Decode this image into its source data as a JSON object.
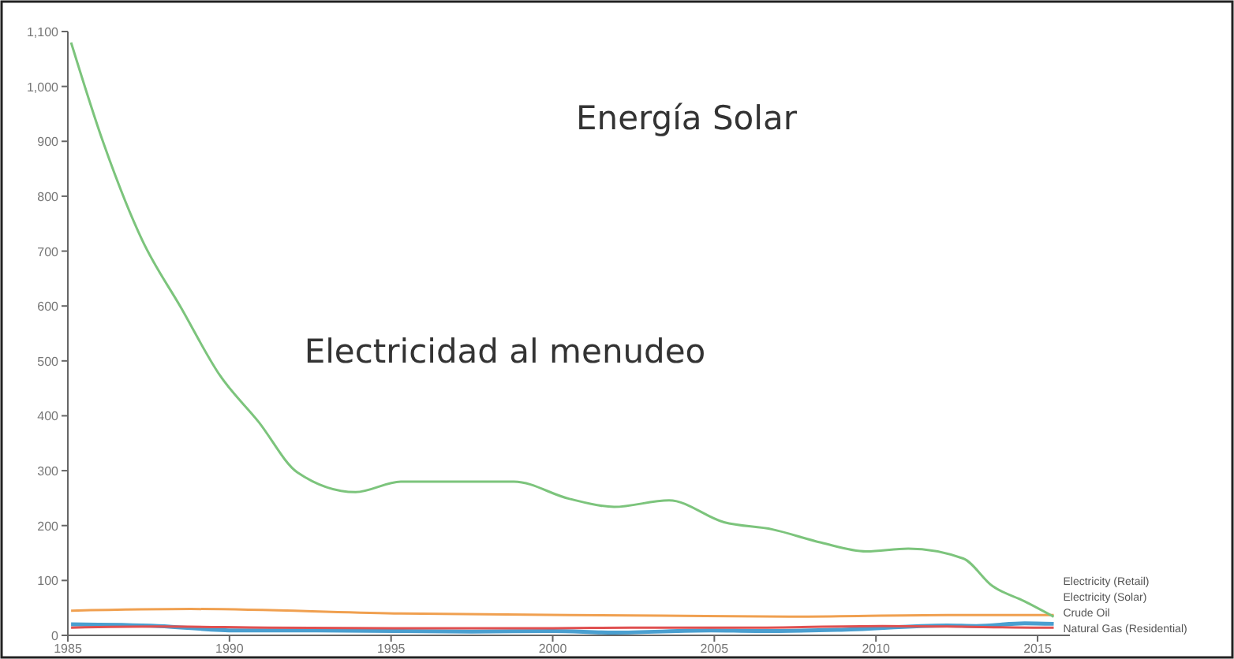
{
  "chart_data": {
    "type": "line",
    "xlim": [
      1985,
      2016
    ],
    "xticks": [
      1985,
      1990,
      1995,
      2000,
      2005,
      2010,
      2015
    ],
    "ylim": [
      0,
      1100
    ],
    "yticks": [
      0,
      100,
      200,
      300,
      400,
      500,
      600,
      700,
      800,
      900,
      {
        "value": 1000,
        "label": "1,000"
      },
      {
        "value": 1100,
        "label": "1,100"
      }
    ],
    "grid": false,
    "marker": "none",
    "line_style": "solid",
    "annotations": [
      "Energía Solar",
      "Electricidad al menudeo"
    ],
    "series": [
      {
        "name": "Electricity (Retail)",
        "color": "#f0a050",
        "x": [
          1985.1,
          1988.8,
          1995.1,
          2003.4,
          2007.3,
          2012.2,
          2015.5
        ],
        "values": [
          45,
          48,
          40,
          36,
          34,
          37,
          37
        ]
      },
      {
        "name": "Electricity (Solar)",
        "color": "#7cc47c",
        "x": [
          1985.1,
          1986.1,
          1987.3,
          1988.5,
          1989.7,
          1990.9,
          1992.1,
          1993.9,
          1995.3,
          1998.8,
          2000.5,
          2001.9,
          2003.6,
          2005.3,
          2006.8,
          2008.3,
          2009.7,
          2011.0,
          2012.7,
          2013.6,
          2014.6,
          2015.5
        ],
        "values": [
          1080,
          897,
          720,
          597,
          474,
          389,
          297,
          261,
          280,
          280,
          249,
          234,
          246,
          206,
          193,
          169,
          153,
          158,
          140,
          90,
          62,
          34
        ]
      },
      {
        "name": "Crude Oil",
        "color": "#4a9fd0",
        "x": [
          1985.1,
          1987.8,
          1990.2,
          1992.7,
          1997.5,
          2000,
          2001.9,
          2004.9,
          2006.3,
          2008.8,
          2012.2,
          2013.1,
          2014.6,
          2015.5
        ],
        "values": [
          20,
          17,
          9,
          9,
          7,
          8,
          5,
          9,
          8,
          10,
          18,
          17,
          22,
          21
        ]
      },
      {
        "name": "Natural Gas (Residential)",
        "color": "#e05050",
        "x": [
          1985.1,
          1987.8,
          1991.2,
          1995.1,
          2000,
          2002.4,
          2005.8,
          2010.2,
          2012.2,
          2015.1,
          2015.5
        ],
        "values": [
          14,
          16,
          14,
          13,
          13,
          14,
          14,
          17,
          16,
          14,
          14
        ]
      }
    ]
  }
}
